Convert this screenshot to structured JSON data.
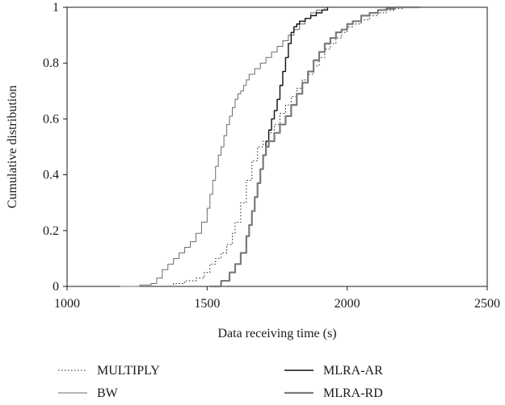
{
  "chart_data": {
    "type": "line",
    "title": "",
    "xlabel": "Data receiving time (s)",
    "ylabel": "Cumulative distribution",
    "xlim": [
      1000,
      2500
    ],
    "ylim": [
      0,
      1
    ],
    "xticks": [
      1000,
      1500,
      2000,
      2500
    ],
    "yticks": [
      0,
      0.2,
      0.4,
      0.6,
      0.8,
      1
    ],
    "ytick_labels": [
      "0",
      "0.2",
      "0.4",
      "0.6",
      "0.8",
      "1"
    ],
    "grid": false,
    "legend_position": "bottom",
    "series": [
      {
        "name": "MULTIPLY",
        "style": "dotted",
        "color": "#1a1a1a",
        "x": [
          1340,
          1380,
          1420,
          1460,
          1490,
          1510,
          1530,
          1550,
          1570,
          1590,
          1600,
          1620,
          1640,
          1660,
          1680,
          1700,
          1720,
          1740,
          1760,
          1780,
          1800,
          1820,
          1840,
          1860,
          1880,
          1900,
          1920,
          1940,
          1960,
          1980,
          2000,
          2020,
          2050,
          2080,
          2110,
          2140,
          2170,
          2200,
          2240,
          2280
        ],
        "y": [
          0,
          0.01,
          0.02,
          0.03,
          0.05,
          0.08,
          0.1,
          0.12,
          0.15,
          0.19,
          0.23,
          0.3,
          0.38,
          0.45,
          0.5,
          0.52,
          0.55,
          0.58,
          0.62,
          0.65,
          0.68,
          0.71,
          0.74,
          0.76,
          0.79,
          0.82,
          0.85,
          0.87,
          0.89,
          0.91,
          0.93,
          0.94,
          0.955,
          0.97,
          0.98,
          0.99,
          0.995,
          1.0,
          1.0,
          1.0
        ]
      },
      {
        "name": "BW",
        "style": "solid-thin",
        "color": "#6b6b6b",
        "x": [
          1190,
          1260,
          1300,
          1320,
          1340,
          1360,
          1380,
          1400,
          1420,
          1440,
          1460,
          1480,
          1500,
          1510,
          1520,
          1530,
          1540,
          1550,
          1560,
          1570,
          1580,
          1590,
          1600,
          1610,
          1620,
          1630,
          1640,
          1650,
          1670,
          1690,
          1710,
          1730,
          1750,
          1770,
          1790,
          1810,
          1830,
          1850,
          1870,
          1890,
          1920
        ],
        "y": [
          0,
          0.005,
          0.01,
          0.03,
          0.06,
          0.08,
          0.1,
          0.12,
          0.14,
          0.16,
          0.19,
          0.23,
          0.28,
          0.33,
          0.38,
          0.43,
          0.47,
          0.5,
          0.54,
          0.58,
          0.61,
          0.64,
          0.67,
          0.69,
          0.7,
          0.72,
          0.74,
          0.76,
          0.78,
          0.8,
          0.82,
          0.84,
          0.86,
          0.88,
          0.9,
          0.92,
          0.94,
          0.96,
          0.98,
          0.99,
          1.0
        ]
      },
      {
        "name": "MLRA-AR",
        "style": "solid",
        "color": "#111111",
        "x": [
          1510,
          1550,
          1580,
          1600,
          1620,
          1640,
          1650,
          1660,
          1670,
          1680,
          1690,
          1700,
          1710,
          1720,
          1730,
          1740,
          1750,
          1760,
          1770,
          1780,
          1790,
          1800,
          1810,
          1820,
          1830,
          1850,
          1870,
          1890,
          1910,
          1930
        ],
        "y": [
          0,
          0.02,
          0.05,
          0.08,
          0.12,
          0.18,
          0.22,
          0.27,
          0.32,
          0.37,
          0.42,
          0.47,
          0.52,
          0.56,
          0.6,
          0.63,
          0.67,
          0.72,
          0.77,
          0.82,
          0.87,
          0.91,
          0.93,
          0.94,
          0.95,
          0.96,
          0.97,
          0.98,
          0.99,
          1.0
        ]
      },
      {
        "name": "MLRA-RD",
        "style": "solid-thick",
        "color": "#7a7a7a",
        "x": [
          1510,
          1550,
          1580,
          1600,
          1620,
          1640,
          1650,
          1660,
          1670,
          1680,
          1690,
          1700,
          1710,
          1720,
          1740,
          1760,
          1780,
          1800,
          1820,
          1840,
          1860,
          1880,
          1900,
          1920,
          1940,
          1960,
          1980,
          2000,
          2020,
          2050,
          2080,
          2110,
          2140,
          2170,
          2200,
          2230,
          2260
        ],
        "y": [
          0,
          0.02,
          0.05,
          0.08,
          0.12,
          0.18,
          0.22,
          0.27,
          0.32,
          0.37,
          0.42,
          0.47,
          0.5,
          0.52,
          0.55,
          0.58,
          0.61,
          0.65,
          0.69,
          0.73,
          0.77,
          0.81,
          0.84,
          0.87,
          0.89,
          0.91,
          0.92,
          0.94,
          0.95,
          0.97,
          0.98,
          0.99,
          0.995,
          1.0,
          1.0,
          1.0,
          1.0
        ]
      }
    ]
  }
}
